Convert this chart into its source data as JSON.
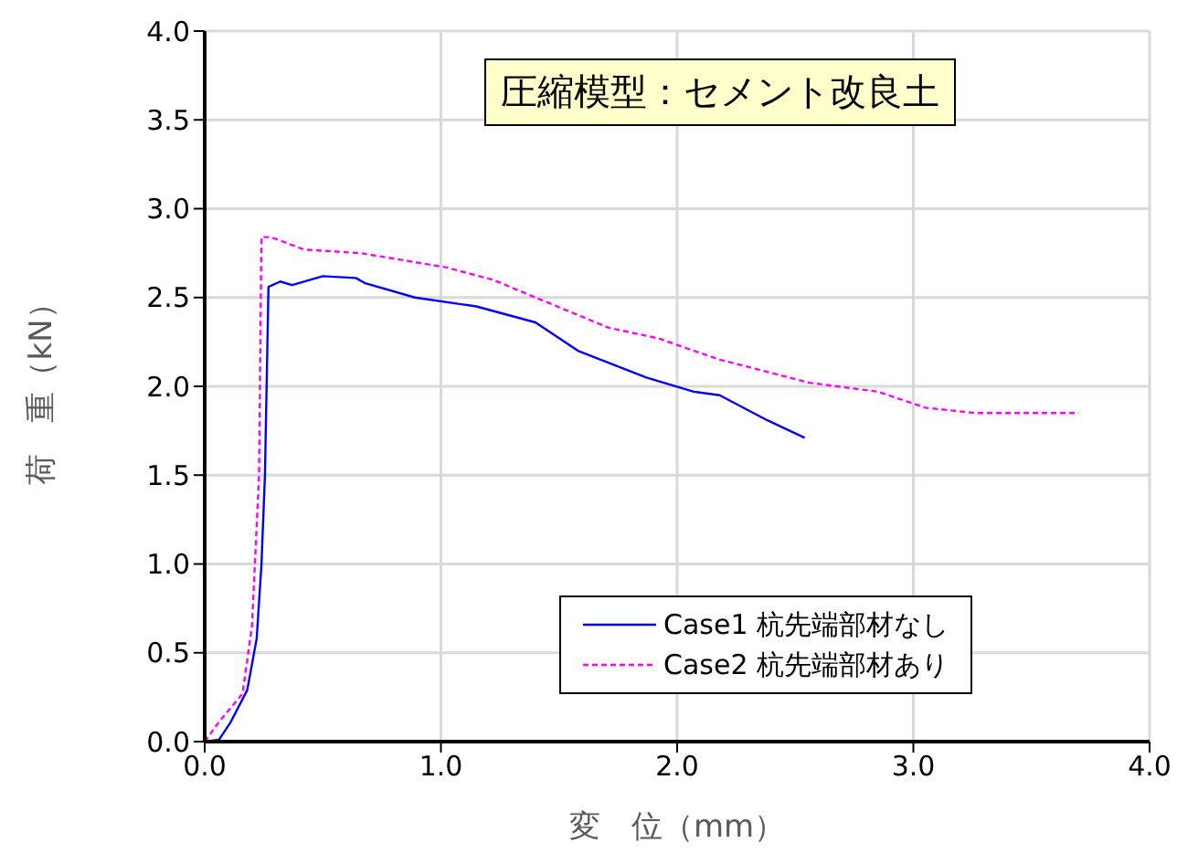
{
  "chart_data": {
    "type": "line",
    "title": "圧縮模型：セメント改良土",
    "xlabel": "変　位（mm）",
    "ylabel": "荷　重（kN）",
    "xlim": [
      0,
      4
    ],
    "xticks": [
      {
        "value": 0,
        "label": "0.0"
      },
      {
        "value": 1,
        "label": "1.0"
      },
      {
        "value": 2,
        "label": "2.0"
      },
      {
        "value": 3,
        "label": "3.0"
      },
      {
        "value": 4,
        "label": "4.0"
      }
    ],
    "ylim": [
      0,
      4
    ],
    "yticks": [
      {
        "value": 0,
        "label": "0.0"
      },
      {
        "value": 0.5,
        "label": "0.5"
      },
      {
        "value": 1,
        "label": "1.0"
      },
      {
        "value": 1.5,
        "label": "1.5"
      },
      {
        "value": 2,
        "label": "2.0"
      },
      {
        "value": 2.5,
        "label": "2.5"
      },
      {
        "value": 3,
        "label": "3.0"
      },
      {
        "value": 3.5,
        "label": "3.5"
      },
      {
        "value": 4,
        "label": "4.0"
      }
    ],
    "grid": true,
    "legend": "bottom right",
    "marker": "none",
    "series": [
      {
        "name": "Case1 杭先端部材なし",
        "color": "#0000ff",
        "line_style": "solid",
        "x": [
          0,
          0.06,
          0.11,
          0.18,
          0.22,
          0.24,
          0.255,
          0.27,
          0.32,
          0.37,
          0.5,
          0.64,
          0.68,
          0.89,
          1.15,
          1.4,
          1.58,
          1.87,
          2.07,
          2.18,
          2.38,
          2.54
        ],
        "values": [
          0,
          0.01,
          0.11,
          0.29,
          0.58,
          0.99,
          1.5,
          2.56,
          2.59,
          2.57,
          2.62,
          2.61,
          2.58,
          2.5,
          2.45,
          2.36,
          2.2,
          2.05,
          1.97,
          1.95,
          1.81,
          1.71
        ]
      },
      {
        "name": "Case2 杭先端部材あり",
        "color": "#ff00ff",
        "line_style": "dashed",
        "x": [
          0,
          0.06,
          0.16,
          0.2,
          0.23,
          0.24,
          0.28,
          0.42,
          0.66,
          1.02,
          1.22,
          1.4,
          1.71,
          1.92,
          2.18,
          2.56,
          2.85,
          3.05,
          3.26,
          3.7
        ],
        "values": [
          0,
          0.11,
          0.27,
          0.65,
          1.5,
          2.84,
          2.84,
          2.77,
          2.75,
          2.67,
          2.6,
          2.5,
          2.33,
          2.27,
          2.15,
          2.02,
          1.97,
          1.88,
          1.85,
          1.85
        ]
      }
    ]
  }
}
